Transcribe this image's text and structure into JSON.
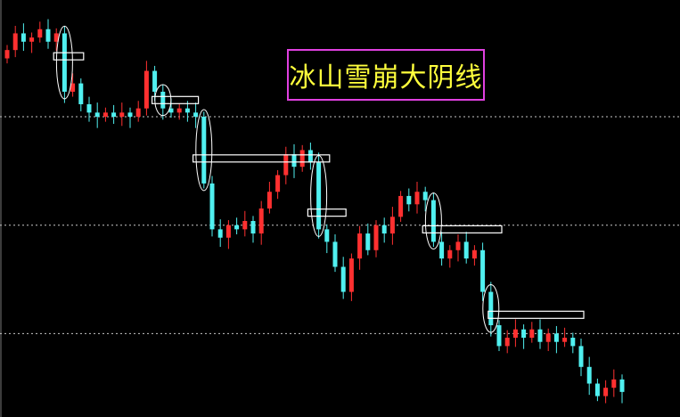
{
  "chart_data": {
    "type": "candlestick",
    "title": "冰山雪崩大阴线",
    "colors": {
      "up": "#ff3030",
      "down": "#50f0f0",
      "grid": "#c8c8c8",
      "annotation": "#ffffff",
      "title_text": "#ffff3c",
      "title_border": "#e040e0"
    },
    "grid": {
      "horizontal_dotted_levels": [
        72,
        46,
        20
      ]
    },
    "ylim": [
      0,
      100
    ],
    "open": [
      86,
      88,
      92,
      90,
      91,
      93,
      90,
      92,
      78,
      80,
      75,
      73,
      72,
      73,
      72,
      73,
      72,
      74,
      83,
      78,
      74,
      73,
      74,
      73,
      72,
      56,
      45,
      43,
      46,
      45,
      47,
      44,
      50,
      54,
      58,
      63,
      60,
      64,
      61,
      45,
      42,
      36,
      30,
      38,
      44,
      40,
      46,
      44,
      48,
      53,
      51,
      54,
      52,
      42,
      38,
      40,
      42,
      38,
      40,
      30,
      22,
      17,
      19,
      21,
      19,
      21,
      18,
      20,
      18,
      19,
      17,
      12,
      8,
      5,
      7,
      9
    ],
    "close": [
      88,
      92,
      90,
      91,
      93,
      90,
      92,
      78,
      80,
      75,
      73,
      72,
      73,
      72,
      73,
      72,
      74,
      83,
      78,
      74,
      73,
      74,
      73,
      72,
      56,
      45,
      43,
      46,
      45,
      47,
      44,
      50,
      54,
      58,
      63,
      60,
      64,
      61,
      45,
      42,
      36,
      30,
      38,
      44,
      40,
      46,
      44,
      48,
      53,
      51,
      54,
      52,
      42,
      38,
      40,
      42,
      38,
      40,
      30,
      22,
      17,
      19,
      21,
      19,
      21,
      18,
      20,
      18,
      19,
      17,
      12,
      8,
      5,
      7,
      9,
      6
    ],
    "annotations": {
      "ellipses": [
        7,
        19,
        24,
        38,
        52,
        59
      ],
      "boxes": [
        {
          "from": 6,
          "to": 9,
          "level": 86.5
        },
        {
          "from": 18,
          "to": 23,
          "level": 76
        },
        {
          "from": 23,
          "to": 39,
          "level": 62
        },
        {
          "from": 37,
          "to": 41,
          "level": 49
        },
        {
          "from": 51,
          "to": 60,
          "level": 45
        },
        {
          "from": 59,
          "to": 70,
          "level": 24.5
        }
      ]
    }
  }
}
